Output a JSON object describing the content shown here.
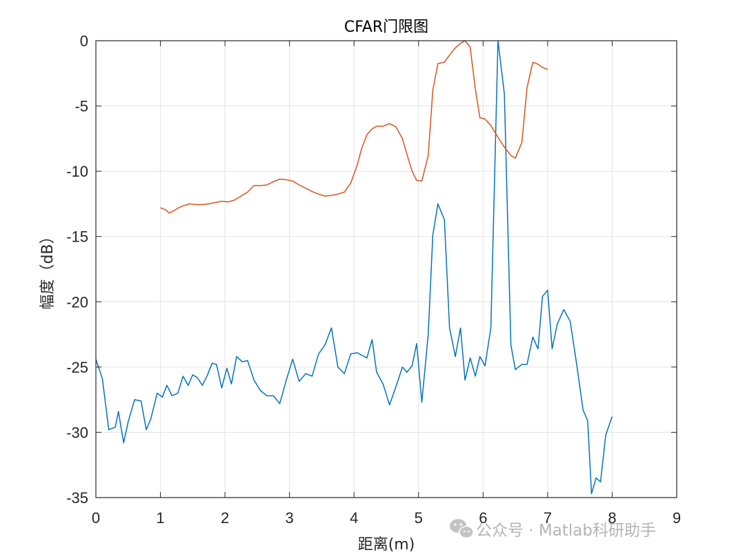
{
  "chart_data": {
    "type": "line",
    "title": "CFAR门限图",
    "xlabel": "距离(m)",
    "ylabel": "幅度（dB）",
    "xlim": [
      0,
      9
    ],
    "ylim": [
      -35,
      0
    ],
    "xticks": [
      0,
      1,
      2,
      3,
      4,
      5,
      6,
      7,
      8,
      9
    ],
    "yticks": [
      0,
      -5,
      -10,
      -15,
      -20,
      -25,
      -30,
      -35
    ],
    "xtick_labels": [
      "0",
      "1",
      "2",
      "3",
      "4",
      "5",
      "6",
      "7",
      "8",
      "9"
    ],
    "ytick_labels": [
      "0",
      "-5",
      "-10",
      "-15",
      "-20",
      "-25",
      "-30",
      "-35"
    ],
    "grid": true,
    "series": [
      {
        "color": "#0072BD",
        "x": [
          0.0,
          0.1,
          0.2,
          0.3,
          0.35,
          0.43,
          0.5,
          0.6,
          0.7,
          0.78,
          0.85,
          0.95,
          1.03,
          1.1,
          1.18,
          1.27,
          1.35,
          1.43,
          1.5,
          1.57,
          1.65,
          1.73,
          1.8,
          1.87,
          1.95,
          2.03,
          2.1,
          2.18,
          2.27,
          2.35,
          2.45,
          2.55,
          2.65,
          2.75,
          2.85,
          2.95,
          3.05,
          3.15,
          3.25,
          3.35,
          3.45,
          3.55,
          3.65,
          3.75,
          3.85,
          3.95,
          4.05,
          4.12,
          4.2,
          4.28,
          4.35,
          4.45,
          4.55,
          4.65,
          4.75,
          4.82,
          4.9,
          4.97,
          5.05,
          5.15,
          5.22,
          5.3,
          5.4,
          5.48,
          5.57,
          5.65,
          5.72,
          5.8,
          5.88,
          5.95,
          6.03,
          6.12,
          6.23,
          6.33,
          6.43,
          6.5,
          6.6,
          6.68,
          6.77,
          6.85,
          6.92,
          7.0,
          7.07,
          7.15,
          7.25,
          7.35,
          7.45,
          7.55,
          7.62,
          7.68,
          7.75,
          7.82,
          7.9,
          8.0
        ],
        "values": [
          -24.4,
          -25.9,
          -29.8,
          -29.6,
          -28.4,
          -30.8,
          -29.2,
          -27.5,
          -27.6,
          -29.8,
          -29.0,
          -27.0,
          -27.3,
          -26.4,
          -27.2,
          -27.0,
          -25.7,
          -26.4,
          -25.6,
          -25.8,
          -26.4,
          -25.6,
          -24.7,
          -24.8,
          -26.6,
          -25.1,
          -26.3,
          -24.2,
          -24.6,
          -24.5,
          -26.0,
          -26.8,
          -27.2,
          -27.2,
          -27.8,
          -26.0,
          -24.4,
          -26.1,
          -25.5,
          -25.7,
          -24.0,
          -23.3,
          -22.0,
          -25.0,
          -25.5,
          -24.0,
          -23.9,
          -24.1,
          -24.3,
          -22.9,
          -25.4,
          -26.3,
          -27.9,
          -26.5,
          -25.0,
          -25.4,
          -24.9,
          -23.2,
          -27.7,
          -22.5,
          -14.9,
          -12.5,
          -13.7,
          -22.0,
          -24.2,
          -22.0,
          -26.0,
          -24.3,
          -25.7,
          -24.2,
          -24.9,
          -22.0,
          0.0,
          -4.1,
          -23.3,
          -25.2,
          -24.8,
          -24.8,
          -22.7,
          -23.6,
          -19.6,
          -19.1,
          -23.6,
          -21.7,
          -20.6,
          -21.5,
          -24.8,
          -28.3,
          -29.1,
          -34.7,
          -33.5,
          -33.8,
          -30.2,
          -28.8
        ]
      },
      {
        "color": "#D95319",
        "x": [
          1.0,
          1.08,
          1.13,
          1.2,
          1.28,
          1.35,
          1.45,
          1.55,
          1.65,
          1.75,
          1.85,
          1.95,
          2.05,
          2.15,
          2.25,
          2.35,
          2.45,
          2.55,
          2.65,
          2.75,
          2.85,
          2.95,
          3.05,
          3.15,
          3.25,
          3.35,
          3.45,
          3.55,
          3.65,
          3.75,
          3.85,
          3.95,
          4.05,
          4.12,
          4.2,
          4.28,
          4.35,
          4.45,
          4.55,
          4.65,
          4.75,
          4.82,
          4.9,
          4.97,
          5.05,
          5.15,
          5.22,
          5.3,
          5.4,
          5.48,
          5.57,
          5.65,
          5.72,
          5.8,
          5.88,
          5.95,
          6.03,
          6.12,
          6.23,
          6.33,
          6.43,
          6.5,
          6.6,
          6.68,
          6.77,
          6.85,
          6.92,
          7.0
        ],
        "values": [
          -12.8,
          -12.95,
          -13.2,
          -13.05,
          -12.8,
          -12.65,
          -12.5,
          -12.55,
          -12.55,
          -12.5,
          -12.4,
          -12.3,
          -12.35,
          -12.2,
          -11.9,
          -11.6,
          -11.1,
          -11.1,
          -11.05,
          -10.8,
          -10.6,
          -10.65,
          -10.75,
          -11.05,
          -11.3,
          -11.55,
          -11.75,
          -11.9,
          -11.85,
          -11.75,
          -11.6,
          -10.9,
          -9.5,
          -8.25,
          -7.2,
          -6.75,
          -6.55,
          -6.55,
          -6.35,
          -6.6,
          -7.5,
          -8.7,
          -10.0,
          -10.7,
          -10.75,
          -8.8,
          -3.8,
          -1.75,
          -1.65,
          -1.1,
          -0.55,
          -0.2,
          0.0,
          -0.5,
          -3.7,
          -5.9,
          -6.0,
          -6.5,
          -7.4,
          -8.15,
          -8.8,
          -9.0,
          -7.8,
          -3.6,
          -1.65,
          -1.8,
          -2.05,
          -2.2
        ]
      }
    ]
  },
  "watermark": {
    "text": "公众号 · Matlab科研助手",
    "icon": "wechat-icon"
  }
}
